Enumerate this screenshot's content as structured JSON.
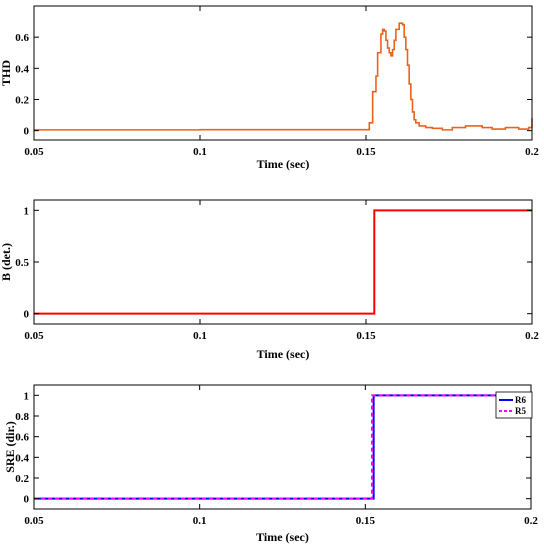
{
  "chart_data": [
    {
      "type": "line",
      "xlabel": "Time (sec)",
      "ylabel": "THD",
      "xlim": [
        0.05,
        0.2
      ],
      "ylim": [
        -0.06,
        0.8
      ],
      "x_ticks": [
        "0.05",
        "0.1",
        "0.15",
        "0.2"
      ],
      "y_ticks": [
        "0",
        "0.2",
        "0.4",
        "0.6"
      ],
      "grid": false,
      "series": [
        {
          "color": "#e8641e",
          "step": true,
          "x": [
            0.05,
            0.1,
            0.1505,
            0.151,
            0.152,
            0.153,
            0.1535,
            0.1545,
            0.155,
            0.1555,
            0.156,
            0.1565,
            0.157,
            0.1575,
            0.158,
            0.1585,
            0.159,
            0.16,
            0.161,
            0.1615,
            0.162,
            0.1625,
            0.163,
            0.1635,
            0.164,
            0.1645,
            0.165,
            0.166,
            0.168,
            0.17,
            0.173,
            0.176,
            0.18,
            0.182,
            0.185,
            0.188,
            0.192,
            0.196,
            0.199,
            0.2
          ],
          "y": [
            0.005,
            0.006,
            0.006,
            0.05,
            0.25,
            0.35,
            0.5,
            0.62,
            0.65,
            0.64,
            0.58,
            0.53,
            0.5,
            0.48,
            0.52,
            0.58,
            0.65,
            0.69,
            0.68,
            0.6,
            0.52,
            0.42,
            0.3,
            0.2,
            0.12,
            0.07,
            0.05,
            0.03,
            0.02,
            0.015,
            0.005,
            0.02,
            0.03,
            0.03,
            0.02,
            0.01,
            0.02,
            0.01,
            0.02,
            0.08
          ]
        }
      ]
    },
    {
      "type": "line",
      "xlabel": "Time (sec)",
      "ylabel": "B (det.)",
      "xlim": [
        0.05,
        0.2
      ],
      "ylim": [
        -0.1,
        1.1
      ],
      "x_ticks": [
        "0.05",
        "0.1",
        "0.15",
        "0.2"
      ],
      "y_ticks": [
        "0",
        "0.5",
        "1"
      ],
      "grid": false,
      "series": [
        {
          "color": "#ff0000",
          "x": [
            0.05,
            0.1525,
            0.1525,
            0.2
          ],
          "y": [
            0,
            0,
            1,
            1
          ]
        }
      ]
    },
    {
      "type": "line",
      "xlabel": "Time (sec)",
      "ylabel": "SRE (dir.)",
      "xlim": [
        0.05,
        0.2
      ],
      "ylim": [
        -0.1,
        1.1
      ],
      "x_ticks": [
        "0.05",
        "0.1",
        "0.15",
        "0.2"
      ],
      "y_ticks": [
        "0",
        "0.2",
        "0.4",
        "0.6",
        "0.8",
        "1"
      ],
      "grid": false,
      "legend": "top-right",
      "series": [
        {
          "name": "R6",
          "color": "#0000ff",
          "dash": "solid",
          "x": [
            0.05,
            0.1525,
            0.1525,
            0.2
          ],
          "y": [
            0,
            0,
            1,
            1
          ]
        },
        {
          "name": "R5",
          "color": "#ff00ff",
          "dash": "dashed",
          "x": [
            0.05,
            0.152,
            0.152,
            0.2
          ],
          "y": [
            0,
            0,
            1,
            1
          ]
        }
      ]
    }
  ]
}
